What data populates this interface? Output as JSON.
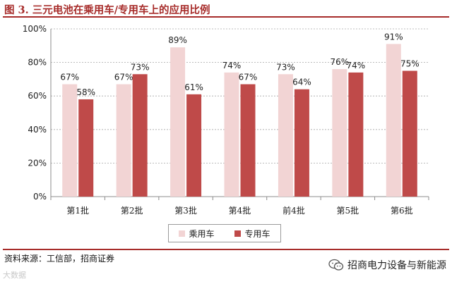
{
  "title": "图 3. 三元电池在乘用车/专用车上的应用比例",
  "source": "资料来源：工信部，招商证券",
  "watermark": "大数据",
  "account": "招商电力设备与新能源",
  "colors": {
    "title": "#a72c2a",
    "series1": "#f2d4d4",
    "series2": "#bf4a49",
    "grid": "#a6a6a6"
  },
  "chart_data": {
    "type": "bar",
    "categories": [
      "第1批",
      "第2批",
      "第3批",
      "第4批",
      "前4批",
      "第5批",
      "第6批"
    ],
    "series": [
      {
        "name": "乘用车",
        "values": [
          67,
          67,
          89,
          74,
          73,
          76,
          91
        ],
        "labels": [
          "67%",
          "67%",
          "89%",
          "74%",
          "73%",
          "76%",
          "91%"
        ]
      },
      {
        "name": "专用车",
        "values": [
          58,
          73,
          61,
          67,
          64,
          74,
          75
        ],
        "labels": [
          "58%",
          "73%",
          "61%",
          "67%",
          "64%",
          "74%",
          "75%"
        ]
      }
    ],
    "yticks": [
      "0%",
      "20%",
      "40%",
      "60%",
      "80%",
      "100%"
    ],
    "ylim": [
      0,
      100
    ],
    "grid": true,
    "legend_position": "bottom"
  }
}
